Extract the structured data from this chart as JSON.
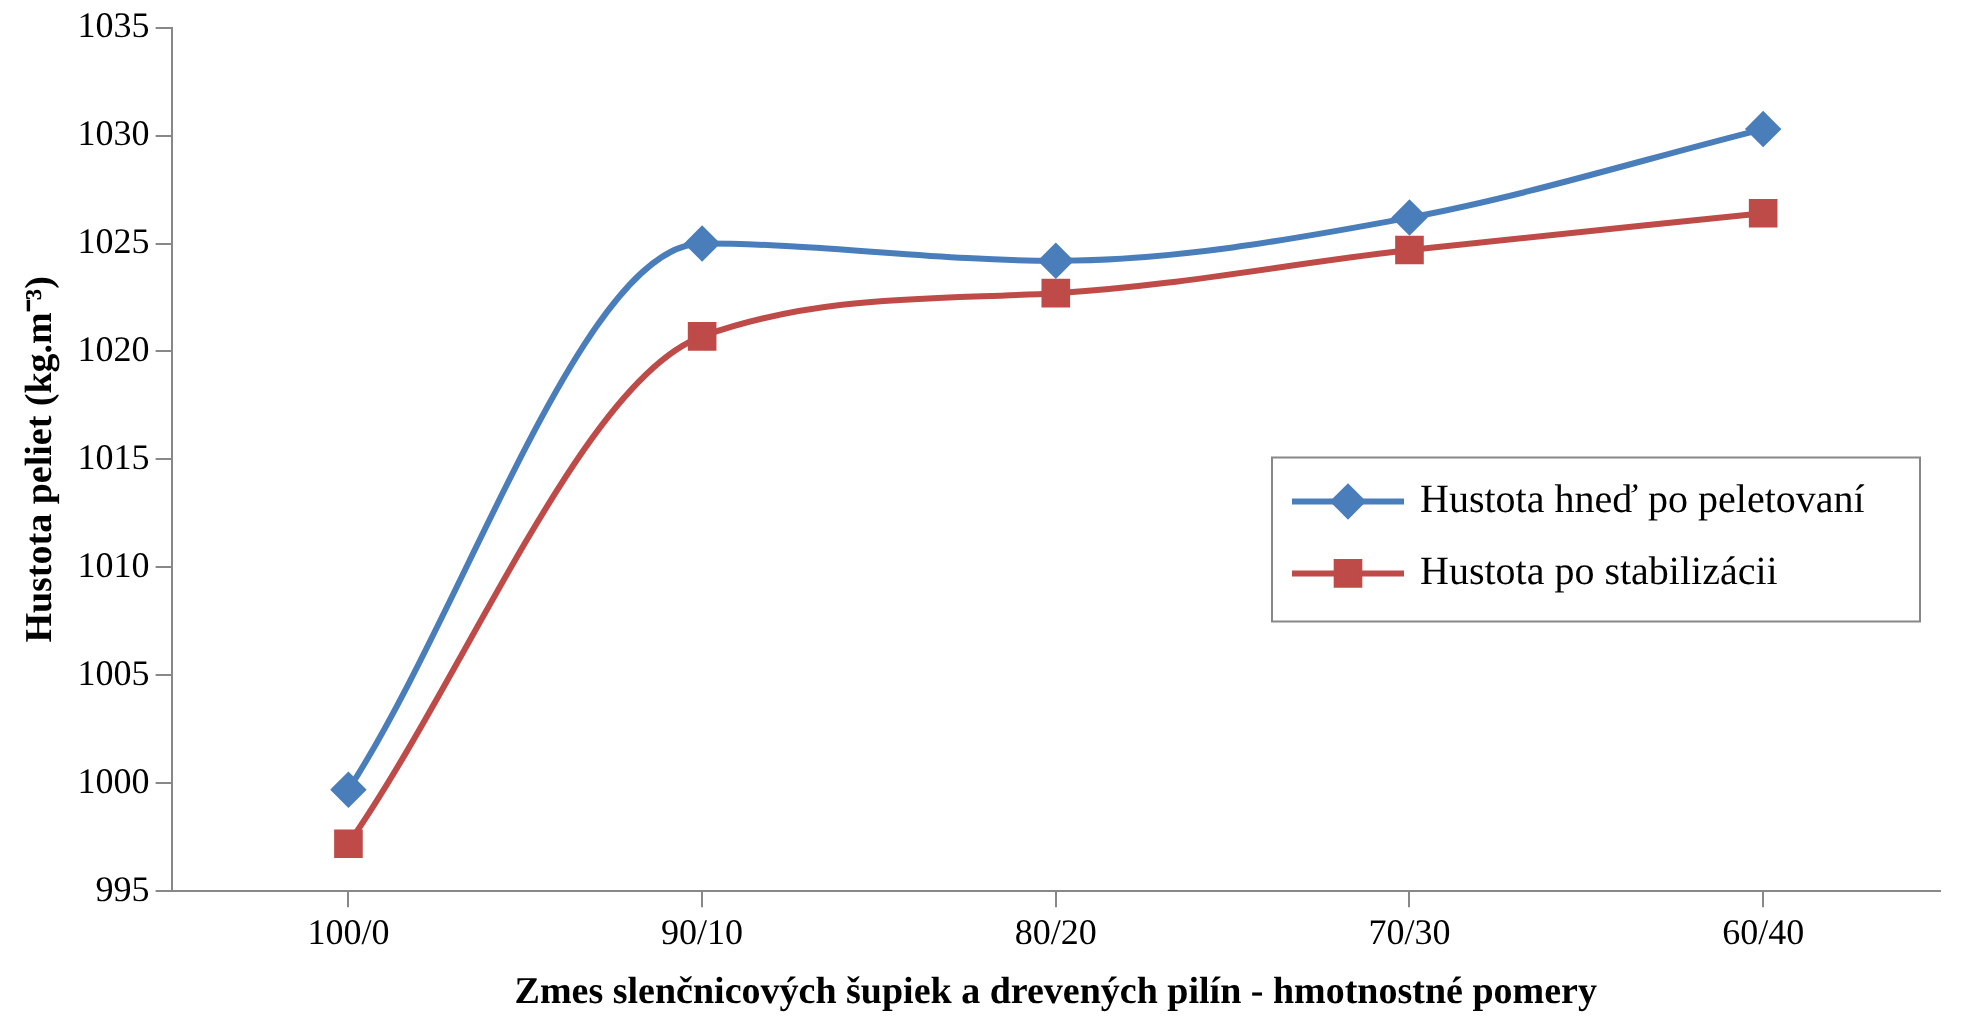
{
  "chart_data": {
    "type": "line",
    "xlabel": "Zmes slenčnicových šupiek a drevených pilín - hmotnostné pomery",
    "ylabel": "Hustota peliet (kg.m⁻³)",
    "categories": [
      "100/0",
      "90/10",
      "80/20",
      "70/30",
      "60/40"
    ],
    "series": [
      {
        "name": "Hustota hneď po peletovaní",
        "color": "#4a7ebb",
        "marker": "diamond",
        "values": [
          999.7,
          1025.0,
          1024.2,
          1026.2,
          1030.3
        ]
      },
      {
        "name": "Hustota po stabilizácii",
        "color": "#be4b48",
        "marker": "square",
        "values": [
          997.2,
          1020.7,
          1022.7,
          1024.7,
          1026.4
        ]
      }
    ],
    "ylim": [
      995,
      1035
    ],
    "yticks": [
      995,
      1000,
      1005,
      1010,
      1015,
      1020,
      1025,
      1030,
      1035
    ],
    "grid": false,
    "legend": "right"
  }
}
